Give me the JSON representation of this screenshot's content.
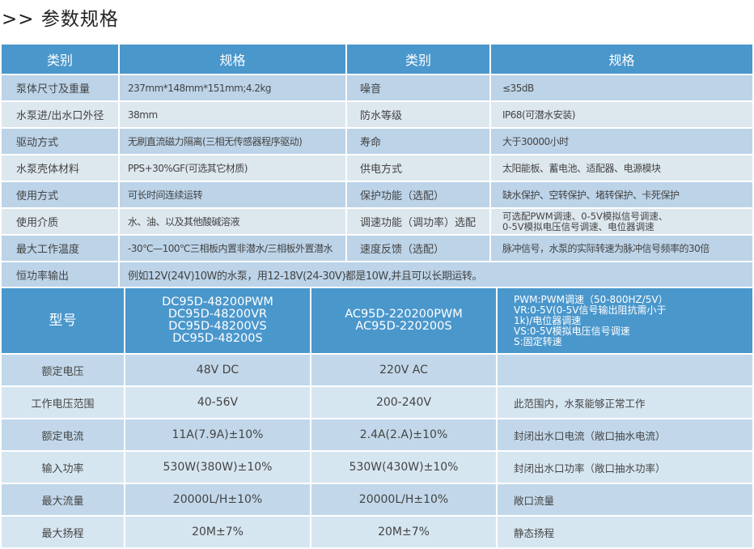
{
  "title": ">> 参数规格",
  "spec_table": {
    "headers": [
      "类别",
      "规格",
      "类别",
      "规格"
    ],
    "rows": [
      [
        "泵体尺寸及重量",
        "237mm*148mm*151mm;4.2kg",
        "噪音",
        "≤35dB"
      ],
      [
        "水泵进/出水口外径",
        "38mm",
        "防水等级",
        "IP68(可潜水安装)"
      ],
      [
        "驱动方式",
        "无刷直流磁力隔离(三相无传感器程序驱动)",
        "寿命",
        "大于30000小时"
      ],
      [
        "水泵壳体材料",
        "PPS+30%GF(可选其它材质)",
        "供电方式",
        "太阳能板、蓄电池、适配器、电源模块"
      ],
      [
        "使用方式",
        "可长时间连续运转",
        "保护功能（选配）",
        "缺水保护、空转保护、堵转保护、卡死保护"
      ],
      [
        "使用介质",
        "水、油、以及其他酸碱溶液",
        "调速功能（调功率）选配",
        "可选配PWM调速、0-5V模拟信号调速、\n0-5V模拟电压信号调速、电位器调速"
      ],
      [
        "最大工作温度",
        "-30℃—100℃三相板内置非潜水/三相板外置潜水",
        "速度反馈（选配）",
        "脉冲信号，水泵的实际转速为脉冲信号频率的30倍"
      ]
    ],
    "last_row": {
      "label": "恒功率输出",
      "value": "例如12V(24V)10W的水泵，用12-18V(24-30V)都是10W,并且可以长期运转。"
    }
  },
  "model_table": {
    "header_label": "型号",
    "dc_models": "DC95D-48200PWM\nDC95D-48200VR\nDC95D-48200VS\nDC95D-48200S",
    "ac_models": "AC95D-220200PWM\nAC95D-220200S",
    "notes": "PWM:PWM调速（50-800HZ/5V）\nVR:0-5V(0-5V信号输出阻抗需小于\n1k)/电位器调速\nVS:0-5V模拟电压信号调速\nS:固定转速",
    "rows": [
      [
        "额定电压",
        "48V DC",
        "220V AC",
        ""
      ],
      [
        "工作电压范围",
        "40-56V",
        "200-240V",
        "此范围内，水泵能够正常工作"
      ],
      [
        "额定电流",
        "11A(7.9A)±10%",
        "2.4A(2.A)±10%",
        "封闭出水口电流（敞口抽水电流）"
      ],
      [
        "输入功率",
        "530W(380W)±10%",
        "530W(430W)±10%",
        "封闭出水口功率（敞口抽水功率）"
      ],
      [
        "最大流量",
        "20000L/H±10%",
        "20000L/H±10%",
        "敞口流量"
      ],
      [
        "最大扬程",
        "20M±7%",
        "20M±7%",
        "静态扬程"
      ]
    ]
  },
  "colors": {
    "header": "#4a97cc",
    "row_light": "#dde7ee",
    "row_blue": "#bcd3e8"
  }
}
